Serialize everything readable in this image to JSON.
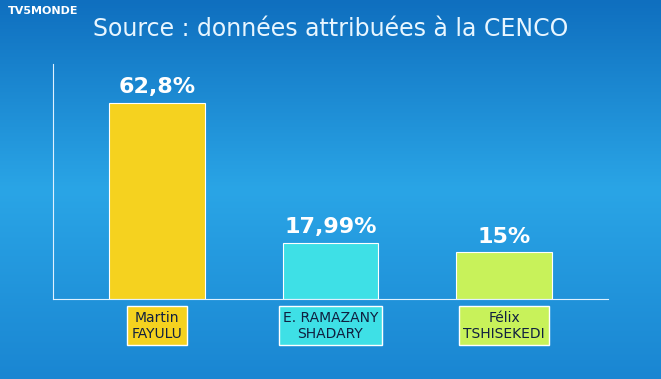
{
  "chart_data": {
    "type": "bar",
    "title": "Source : données attribuées à la CENCO",
    "annotations": [
      "TV5MONDE"
    ],
    "categories": [
      "Martin\nFAYULU",
      "E. RAMAZANY\nSHADARY",
      "Félix\nTSHISEKEDI"
    ],
    "values": [
      62.8,
      17.99,
      15
    ],
    "value_labels": [
      "62,8%",
      "17,99%",
      "15%"
    ],
    "colors": [
      "#f5d21f",
      "#3ee0e6",
      "#c8f25a"
    ],
    "ylim": [
      0,
      75
    ],
    "data_labels": true,
    "tick_labels": "x",
    "grid": false
  }
}
